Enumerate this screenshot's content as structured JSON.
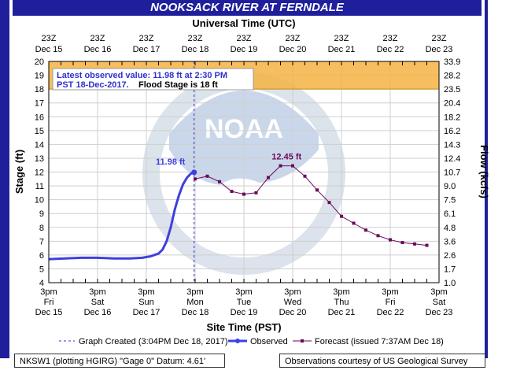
{
  "chart_data": {
    "type": "line",
    "title": "NOOKSACK RIVER AT FERNDALE",
    "top_axis_title": "Universal Time (UTC)",
    "xlabel": "Site Time (PST)",
    "ylabel": "Stage (ft)",
    "y2label": "Flow (kcfs)",
    "ylim": [
      4,
      20
    ],
    "y_ticks": [
      4,
      5,
      6,
      7,
      8,
      9,
      10,
      11,
      12,
      13,
      14,
      15,
      16,
      17,
      18,
      19,
      20
    ],
    "y2_ticks": [
      "1.0",
      "1.7",
      "2.6",
      "3.6",
      "4.8",
      "6.1",
      "7.5",
      "9.0",
      "10.7",
      "12.4",
      "14.3",
      "16.2",
      "18.2",
      "20.4",
      "23.5",
      "28.2",
      "33.9"
    ],
    "x_range_hours": [
      0,
      192
    ],
    "top_ticks": [
      {
        "line1": "23Z",
        "line2": "Dec 15",
        "hour": 0
      },
      {
        "line1": "23Z",
        "line2": "Dec 16",
        "hour": 24
      },
      {
        "line1": "23Z",
        "line2": "Dec 17",
        "hour": 48
      },
      {
        "line1": "23Z",
        "line2": "Dec 18",
        "hour": 72
      },
      {
        "line1": "23Z",
        "line2": "Dec 19",
        "hour": 96
      },
      {
        "line1": "23Z",
        "line2": "Dec 20",
        "hour": 120
      },
      {
        "line1": "23Z",
        "line2": "Dec 21",
        "hour": 144
      },
      {
        "line1": "23Z",
        "line2": "Dec 22",
        "hour": 168
      },
      {
        "line1": "23Z",
        "line2": "Dec 23",
        "hour": 192
      }
    ],
    "bottom_ticks": [
      {
        "line1": "3pm",
        "line2": "Fri",
        "line3": "Dec 15",
        "hour": 0
      },
      {
        "line1": "3pm",
        "line2": "Sat",
        "line3": "Dec 16",
        "hour": 24
      },
      {
        "line1": "3pm",
        "line2": "Sun",
        "line3": "Dec 17",
        "hour": 48
      },
      {
        "line1": "3pm",
        "line2": "Mon",
        "line3": "Dec 18",
        "hour": 72
      },
      {
        "line1": "3pm",
        "line2": "Tue",
        "line3": "Dec 19",
        "hour": 96
      },
      {
        "line1": "3pm",
        "line2": "Wed",
        "line3": "Dec 20",
        "hour": 120
      },
      {
        "line1": "3pm",
        "line2": "Thu",
        "line3": "Dec 21",
        "hour": 144
      },
      {
        "line1": "3pm",
        "line2": "Fri",
        "line3": "Dec 22",
        "hour": 168
      },
      {
        "line1": "3pm",
        "line2": "Sat",
        "line3": "Dec 23",
        "hour": 192
      }
    ],
    "flood_stage": 18,
    "flood_band": [
      18,
      20
    ],
    "flood_stage_label": "Flood Stage is 18 ft",
    "observed_label_value": "11.98 ft",
    "forecast_peak_label": "12.45 ft",
    "latest_observed_text_line1": "Latest observed value: 11.98 ft at 2:30 PM",
    "latest_observed_text_line2": "PST 18-Dec-2017.",
    "graph_created_hour": 71.5,
    "series": [
      {
        "name": "Observed",
        "color": "#3f3fe0",
        "points": [
          [
            0,
            5.7
          ],
          [
            8,
            5.75
          ],
          [
            16,
            5.8
          ],
          [
            24,
            5.8
          ],
          [
            32,
            5.75
          ],
          [
            40,
            5.75
          ],
          [
            46,
            5.8
          ],
          [
            50,
            5.9
          ],
          [
            54,
            6.1
          ],
          [
            56,
            6.4
          ],
          [
            58,
            7.0
          ],
          [
            60,
            8.0
          ],
          [
            62,
            9.3
          ],
          [
            64,
            10.3
          ],
          [
            66,
            11.1
          ],
          [
            68,
            11.6
          ],
          [
            70,
            11.9
          ],
          [
            71.5,
            11.98
          ]
        ]
      },
      {
        "name": "Forecast (issued 7:37AM Dec 18)",
        "color": "#6a0a5a",
        "points": [
          [
            72,
            11.5
          ],
          [
            78,
            11.7
          ],
          [
            84,
            11.3
          ],
          [
            90,
            10.6
          ],
          [
            96,
            10.4
          ],
          [
            102,
            10.5
          ],
          [
            108,
            11.6
          ],
          [
            114,
            12.45
          ],
          [
            120,
            12.45
          ],
          [
            126,
            11.7
          ],
          [
            132,
            10.7
          ],
          [
            138,
            9.8
          ],
          [
            144,
            8.8
          ],
          [
            150,
            8.3
          ],
          [
            156,
            7.8
          ],
          [
            162,
            7.4
          ],
          [
            168,
            7.1
          ],
          [
            174,
            6.9
          ],
          [
            180,
            6.8
          ],
          [
            186,
            6.7
          ]
        ]
      }
    ],
    "legend": {
      "graph_created": "Graph Created (3:04PM Dec 18, 2017)",
      "observed": "Observed",
      "forecast": "Forecast (issued 7:37AM Dec 18)"
    },
    "footer_left": "NKSW1 (plotting HGIRG) \"Gage 0\" Datum: 4.61'",
    "footer_right": "Observations courtesy of US Geological Survey",
    "colors": {
      "title_bg": "#1f1f9c",
      "flood_band": "#f5b342",
      "axis_text": "#000000",
      "grid": "#cfcfcf"
    }
  }
}
